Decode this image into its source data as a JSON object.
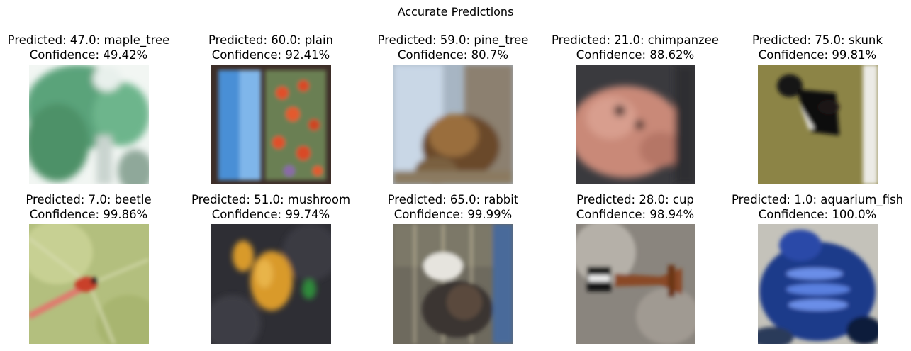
{
  "title": "Accurate Predictions",
  "panels": [
    {
      "predicted": "Predicted: 47.0: maple_tree",
      "confidence": "Confidence: 49.42%",
      "image": "maple-tree-photo"
    },
    {
      "predicted": "Predicted: 60.0: plain",
      "confidence": "Confidence: 92.41%",
      "image": "plain-photo"
    },
    {
      "predicted": "Predicted: 59.0: pine_tree",
      "confidence": "Confidence: 80.7%",
      "image": "pine-tree-photo"
    },
    {
      "predicted": "Predicted: 21.0: chimpanzee",
      "confidence": "Confidence: 88.62%",
      "image": "chimpanzee-photo"
    },
    {
      "predicted": "Predicted: 75.0: skunk",
      "confidence": "Confidence: 99.81%",
      "image": "skunk-photo"
    },
    {
      "predicted": "Predicted: 7.0: beetle",
      "confidence": "Confidence: 99.86%",
      "image": "beetle-photo"
    },
    {
      "predicted": "Predicted: 51.0: mushroom",
      "confidence": "Confidence: 99.74%",
      "image": "mushroom-photo"
    },
    {
      "predicted": "Predicted: 65.0: rabbit",
      "confidence": "Confidence: 99.99%",
      "image": "rabbit-photo"
    },
    {
      "predicted": "Predicted: 28.0: cup",
      "confidence": "Confidence: 98.94%",
      "image": "cup-photo"
    },
    {
      "predicted": "Predicted: 1.0: aquarium_fish",
      "confidence": "Confidence: 100.0%",
      "image": "aquarium-fish-photo"
    }
  ]
}
